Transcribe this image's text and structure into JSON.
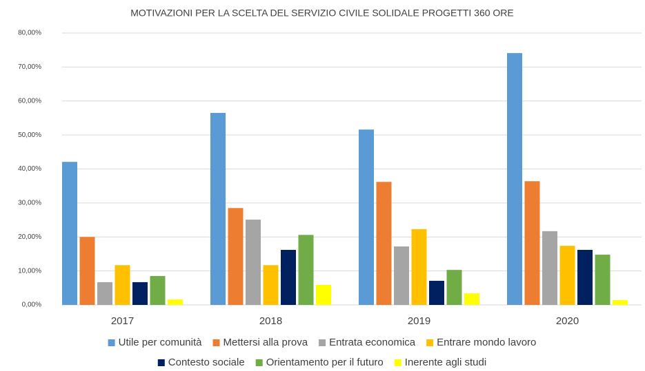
{
  "chart_data": {
    "type": "bar",
    "title": "MOTIVAZIONI PER LA SCELTA DEL SERVIZIO CIVILE SOLIDALE PROGETTI 360 ORE",
    "categories": [
      "2017",
      "2018",
      "2019",
      "2020"
    ],
    "series": [
      {
        "name": "Utile per comunità",
        "color": "#5b9bd5",
        "values": [
          42.1,
          56.5,
          51.6,
          74.1
        ]
      },
      {
        "name": "Mettersi alla prova",
        "color": "#ed7d31",
        "values": [
          20.0,
          28.5,
          36.2,
          36.4
        ]
      },
      {
        "name": "Entrata economica",
        "color": "#a5a5a5",
        "values": [
          6.7,
          25.1,
          17.2,
          21.7
        ]
      },
      {
        "name": "Entrare mondo lavoro",
        "color": "#ffc000",
        "values": [
          11.7,
          11.7,
          22.3,
          17.4
        ]
      },
      {
        "name": "Contesto sociale",
        "color": "#002060",
        "values": [
          6.7,
          16.2,
          7.1,
          16.2
        ]
      },
      {
        "name": "Orientamento per il futuro",
        "color": "#70ad47",
        "values": [
          8.5,
          20.6,
          10.3,
          14.8
        ]
      },
      {
        "name": "Inerente agli studi",
        "color": "#ffff00",
        "values": [
          1.6,
          5.9,
          3.4,
          1.4
        ]
      }
    ],
    "ylim": [
      0,
      80
    ],
    "yticks": [
      {
        "value": 0,
        "label": "0,00%"
      },
      {
        "value": 10,
        "label": "10,00%"
      },
      {
        "value": 20,
        "label": "20,00%"
      },
      {
        "value": 30,
        "label": "30,00%"
      },
      {
        "value": 40,
        "label": "40,00%"
      },
      {
        "value": 50,
        "label": "50,00%"
      },
      {
        "value": 60,
        "label": "60,00%"
      },
      {
        "value": 70,
        "label": "70,00%"
      },
      {
        "value": 80,
        "label": "80,00%"
      }
    ],
    "grid": true,
    "legend": "bottom"
  }
}
